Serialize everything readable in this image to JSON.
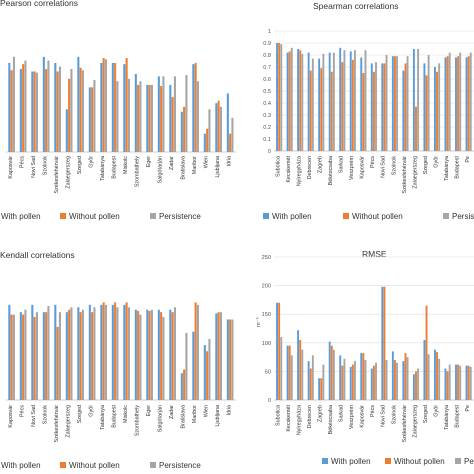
{
  "colors": {
    "with": "#5B9BD5",
    "without": "#ED7D31",
    "persistence": "#A5A5A5"
  },
  "legend_labels": {
    "with": "With pollen",
    "without": "Without pollen",
    "persistence": "Persistence"
  },
  "chart_data": [
    {
      "type": "bar",
      "title": "Pearson correlations",
      "categories": [
        "Kaposvár",
        "Pécs",
        "Novi Sad",
        "Szolnok",
        "Székesfehérvár",
        "Zalaegerszeg",
        "Szeged",
        "Győr",
        "Tatabánya",
        "Budapest",
        "Miskolc",
        "Szombathely",
        "Eger",
        "Salgótarján",
        "Zadar",
        "Bratislava",
        "Maribor",
        "Wien",
        "Ljubljana",
        "Idria"
      ],
      "series": [
        {
          "name": "With pollen",
          "values": [
            0.73,
            0.68,
            0.66,
            0.78,
            0.73,
            0.35,
            0.78,
            0.53,
            0.73,
            0.73,
            0.72,
            0.64,
            0.55,
            0.62,
            0.55,
            0.33,
            0.72,
            0.15,
            0.4,
            0.48
          ]
        },
        {
          "name": "Without pollen",
          "values": [
            0.67,
            0.72,
            0.66,
            0.68,
            0.66,
            0.6,
            0.69,
            0.53,
            0.77,
            0.73,
            0.77,
            0.55,
            0.55,
            0.54,
            0.45,
            0.37,
            0.73,
            0.19,
            0.42,
            0.15
          ]
        },
        {
          "name": "Persistence",
          "values": [
            0.78,
            0.75,
            0.65,
            0.75,
            0.7,
            0.68,
            0.67,
            0.59,
            0.76,
            0.58,
            0.6,
            0.58,
            0.55,
            0.62,
            0.62,
            0.63,
            0.58,
            0.35,
            0.37,
            0.28
          ]
        }
      ]
    },
    {
      "type": "bar",
      "title": "Spearman correlations",
      "ylim": [
        0,
        1
      ],
      "yticks": [
        0,
        0.1,
        0.2,
        0.3,
        0.4,
        0.5,
        0.6,
        0.7,
        0.8,
        0.9,
        1
      ],
      "categories": [
        "Subotica",
        "Kecskemét",
        "Nyíregyháza",
        "Debrecen",
        "Zagreb",
        "Békéscsaba",
        "Sarkad",
        "Veszprém",
        "Kaposvár",
        "Pécs",
        "Novi Sad",
        "Szolnok",
        "Székesfehérvár",
        "Zalaegerszeg",
        "Szeged",
        "Győr",
        "Tatabánya",
        "Budapest",
        "Pe"
      ],
      "series": [
        {
          "name": "With pollen",
          "values": [
            0.9,
            0.82,
            0.85,
            0.82,
            0.77,
            0.82,
            0.86,
            0.83,
            0.78,
            0.73,
            0.73,
            0.79,
            0.67,
            0.85,
            0.73,
            0.7,
            0.78,
            0.78,
            0.78
          ]
        },
        {
          "name": "Without pollen",
          "values": [
            0.9,
            0.83,
            0.84,
            0.67,
            0.69,
            0.66,
            0.74,
            0.76,
            0.65,
            0.66,
            0.73,
            0.79,
            0.73,
            0.37,
            0.63,
            0.66,
            0.79,
            0.79,
            0.79
          ]
        },
        {
          "name": "Persistence",
          "values": [
            0.89,
            0.86,
            0.81,
            0.77,
            0.81,
            0.82,
            0.84,
            0.84,
            0.84,
            0.74,
            0.8,
            0.79,
            0.79,
            0.85,
            0.8,
            0.73,
            0.82,
            0.82,
            0.82
          ]
        }
      ]
    },
    {
      "type": "bar",
      "title": "Kendall correlations",
      "categories": [
        "Kaposvár",
        "Pécs",
        "Novi Sad",
        "Szolnok",
        "Székesfehérvár",
        "Zalaegerszeg",
        "Szeged",
        "Győr",
        "Tatabánya",
        "Budapest",
        "Miskolc",
        "Szombathely",
        "Eger",
        "Salgótarján",
        "Zadar",
        "Bratislava",
        "Maribor",
        "Wien",
        "Ljubljana",
        "Idria"
      ],
      "series": [
        {
          "name": "With pollen",
          "values": [
            0.78,
            0.72,
            0.78,
            0.72,
            0.78,
            0.72,
            0.76,
            0.78,
            0.78,
            0.78,
            0.78,
            0.74,
            0.74,
            0.74,
            0.74,
            0.22,
            0.56,
            0.45,
            0.71,
            0.66
          ]
        },
        {
          "name": "Without pollen",
          "values": [
            0.7,
            0.7,
            0.68,
            0.72,
            0.6,
            0.74,
            0.72,
            0.72,
            0.8,
            0.8,
            0.8,
            0.73,
            0.73,
            0.72,
            0.72,
            0.25,
            0.8,
            0.4,
            0.72,
            0.66
          ]
        },
        {
          "name": "Persistence",
          "values": [
            0.7,
            0.74,
            0.72,
            0.77,
            0.72,
            0.76,
            0.74,
            0.76,
            0.78,
            0.76,
            0.76,
            0.7,
            0.74,
            0.68,
            0.76,
            0.55,
            0.78,
            0.5,
            0.72,
            0.66
          ]
        }
      ]
    },
    {
      "type": "bar",
      "title": "RMSE",
      "ylabel": "m⁻³",
      "ylim": [
        0,
        250
      ],
      "yticks": [
        0,
        50,
        100,
        150,
        200,
        250
      ],
      "categories": [
        "Subotica",
        "Kecskemét",
        "Nyíregyháza",
        "Debrecen",
        "Zagreb",
        "Békéscsaba",
        "Sarkad",
        "Veszprém",
        "Kaposvár",
        "Pécs",
        "Novi Sad",
        "Szolnok",
        "Székesfehérvár",
        "Zalaegerszeg",
        "Szeged",
        "Győr",
        "Tatabánya",
        "Budapest",
        "Pe"
      ],
      "series": [
        {
          "name": "With pollen",
          "values": [
            170,
            95,
            122,
            68,
            38,
            102,
            78,
            58,
            82,
            55,
            198,
            85,
            68,
            45,
            105,
            88,
            55,
            62,
            60
          ]
        },
        {
          "name": "Without pollen",
          "values": [
            170,
            95,
            105,
            55,
            38,
            95,
            60,
            62,
            82,
            60,
            198,
            70,
            82,
            50,
            165,
            84,
            50,
            62,
            60
          ]
        },
        {
          "name": "Persistence",
          "values": [
            110,
            78,
            88,
            78,
            62,
            88,
            72,
            68,
            70,
            65,
            70,
            65,
            75,
            55,
            80,
            72,
            62,
            60,
            58
          ]
        }
      ]
    }
  ]
}
